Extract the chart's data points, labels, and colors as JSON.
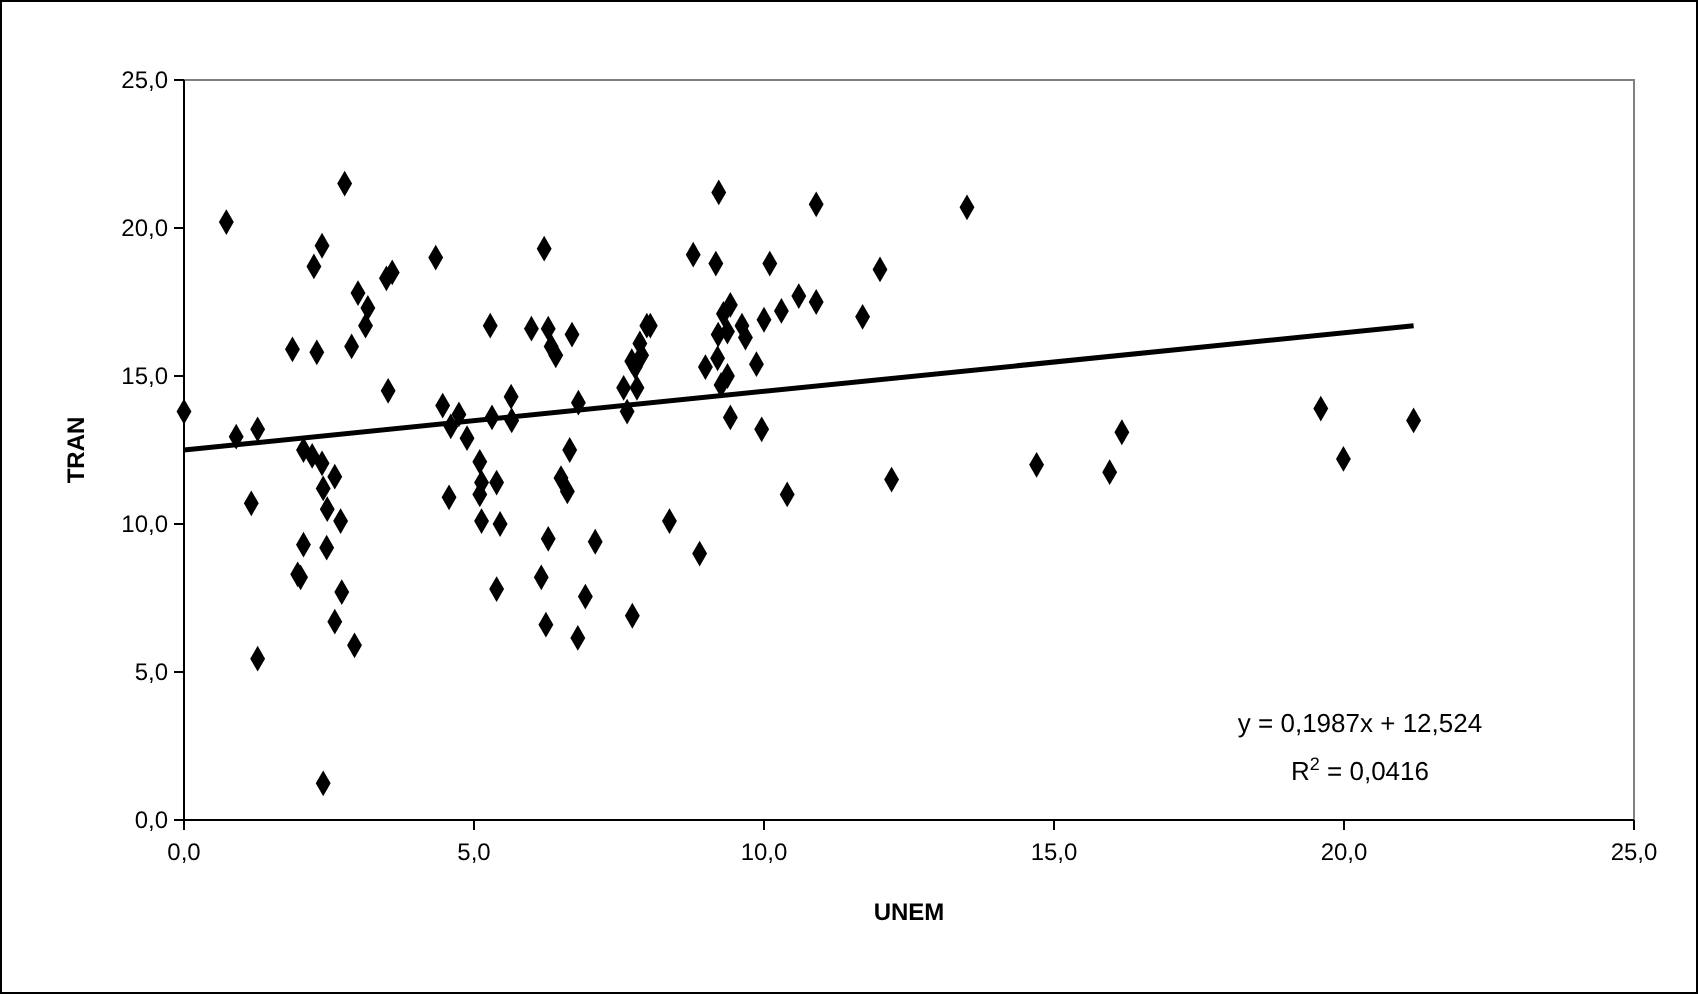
{
  "chart_data": {
    "type": "scatter",
    "xlabel": "UNEM",
    "ylabel": "TRAN",
    "grid": false,
    "xlim": [
      0,
      25
    ],
    "ylim": [
      0,
      25
    ],
    "xticks": [
      {
        "value": 0,
        "label": "0,0"
      },
      {
        "value": 5,
        "label": "5,0"
      },
      {
        "value": 10,
        "label": "10,0"
      },
      {
        "value": 15,
        "label": "15,0"
      },
      {
        "value": 20,
        "label": "20,0"
      },
      {
        "value": 25,
        "label": "25,0"
      }
    ],
    "yticks": [
      {
        "value": 0,
        "label": "0,0"
      },
      {
        "value": 5,
        "label": "5,0"
      },
      {
        "value": 10,
        "label": "10,0"
      },
      {
        "value": 15,
        "label": "15,0"
      },
      {
        "value": 20,
        "label": "20,0"
      },
      {
        "value": 25,
        "label": "25,0"
      }
    ],
    "series": [
      {
        "marker": "diamond",
        "color": "#000000",
        "x": [
          0.0,
          0.73,
          0.9,
          1.27,
          1.16,
          1.27,
          1.87,
          2.29,
          1.96,
          2.01,
          2.06,
          2.06,
          2.24,
          2.38,
          2.77,
          2.21,
          2.38,
          2.4,
          2.6,
          2.47,
          2.7,
          2.46,
          2.72,
          2.6,
          2.94,
          2.4,
          2.89,
          3.0,
          3.13,
          3.17,
          3.49,
          3.59,
          3.52,
          4.34,
          4.46,
          4.74,
          4.6,
          4.88,
          4.57,
          5.1,
          5.13,
          5.1,
          5.39,
          5.13,
          5.45,
          5.39,
          5.28,
          5.31,
          5.64,
          5.65,
          5.99,
          6.21,
          6.28,
          6.33,
          6.41,
          6.5,
          6.28,
          6.16,
          6.24,
          6.69,
          6.8,
          6.65,
          6.61,
          7.09,
          6.92,
          6.79,
          7.73,
          7.58,
          7.64,
          7.78,
          7.81,
          7.72,
          7.89,
          7.86,
          7.98,
          8.04,
          8.37,
          8.89,
          8.78,
          8.99,
          9.17,
          9.22,
          9.2,
          9.21,
          9.26,
          9.3,
          9.42,
          9.37,
          9.37,
          9.42,
          9.62,
          9.68,
          9.87,
          9.96,
          10.0,
          10.1,
          10.3,
          10.4,
          10.6,
          10.9,
          10.9,
          11.7,
          12.0,
          12.2,
          13.5,
          14.7,
          15.96,
          16.17,
          19.6,
          19.99,
          21.2
        ],
        "values": [
          13.8,
          20.2,
          12.95,
          13.2,
          10.7,
          5.45,
          15.9,
          15.8,
          8.3,
          8.2,
          9.3,
          12.5,
          18.7,
          19.4,
          21.5,
          12.3,
          12.05,
          11.2,
          11.6,
          10.5,
          10.1,
          9.2,
          7.7,
          6.7,
          5.9,
          1.24,
          16.0,
          17.8,
          16.7,
          17.3,
          18.3,
          18.5,
          14.5,
          19.0,
          14.0,
          13.7,
          13.3,
          12.9,
          10.9,
          12.1,
          11.4,
          11.0,
          11.4,
          10.1,
          10.0,
          7.8,
          16.7,
          13.6,
          14.3,
          13.5,
          16.6,
          19.3,
          16.6,
          16.0,
          15.7,
          11.55,
          9.5,
          8.2,
          6.6,
          16.4,
          14.1,
          12.5,
          11.1,
          9.4,
          7.55,
          6.15,
          6.9,
          14.6,
          13.8,
          15.3,
          14.6,
          15.5,
          15.7,
          16.1,
          16.7,
          16.7,
          10.1,
          9.0,
          19.1,
          15.3,
          18.8,
          21.2,
          15.6,
          16.4,
          14.7,
          17.1,
          17.4,
          16.5,
          15.0,
          13.6,
          16.7,
          16.3,
          15.4,
          13.2,
          16.9,
          18.8,
          17.2,
          11.0,
          17.7,
          20.8,
          17.5,
          17.0,
          18.6,
          11.5,
          20.7,
          12.0,
          11.75,
          13.1,
          13.9,
          12.2,
          13.5
        ]
      },
      {
        "type": "line",
        "color": "#000000",
        "x": [
          0,
          21.2
        ],
        "values": [
          12.5,
          16.7
        ]
      }
    ],
    "annotations": [
      "y = 0,1987x + 12,524",
      "R$^{2}$ = 0,0416"
    ]
  }
}
